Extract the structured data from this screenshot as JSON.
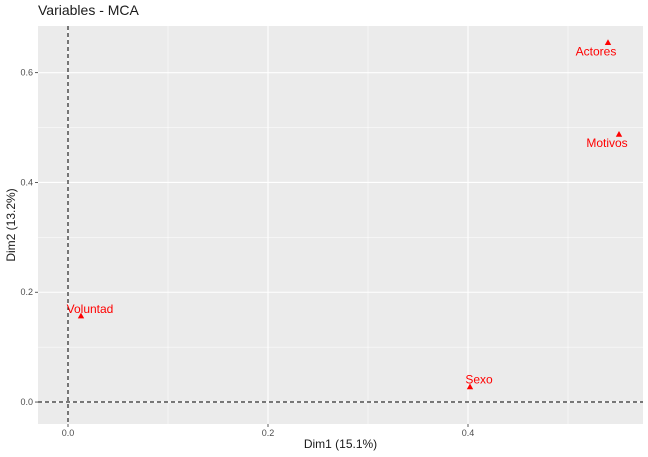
{
  "chart_data": {
    "type": "scatter",
    "title": "Variables - MCA",
    "xlabel": "Dim1 (15.1%)",
    "ylabel": "Dim2 (13.2%)",
    "xlim": [
      -0.03,
      0.575
    ],
    "ylim": [
      -0.04,
      0.685
    ],
    "x_ticks": [
      0.0,
      0.2,
      0.4
    ],
    "x_tick_labels": [
      "0.0",
      "0.2",
      "0.4"
    ],
    "y_ticks": [
      0.0,
      0.2,
      0.4,
      0.6
    ],
    "y_tick_labels": [
      "0.0",
      "0.2",
      "0.4",
      "0.6"
    ],
    "grid": true,
    "reference_lines": {
      "x": 0,
      "y": 0,
      "style": "dashed"
    },
    "colors": {
      "panel": "#ebebeb",
      "grid": "#ffffff",
      "points": "#ff0000"
    },
    "points": [
      {
        "label": "Actores",
        "x": 0.54,
        "y": 0.655
      },
      {
        "label": "Motivos",
        "x": 0.551,
        "y": 0.488
      },
      {
        "label": "Voluntad",
        "x": 0.013,
        "y": 0.157
      },
      {
        "label": "Sexo",
        "x": 0.402,
        "y": 0.028
      }
    ]
  }
}
